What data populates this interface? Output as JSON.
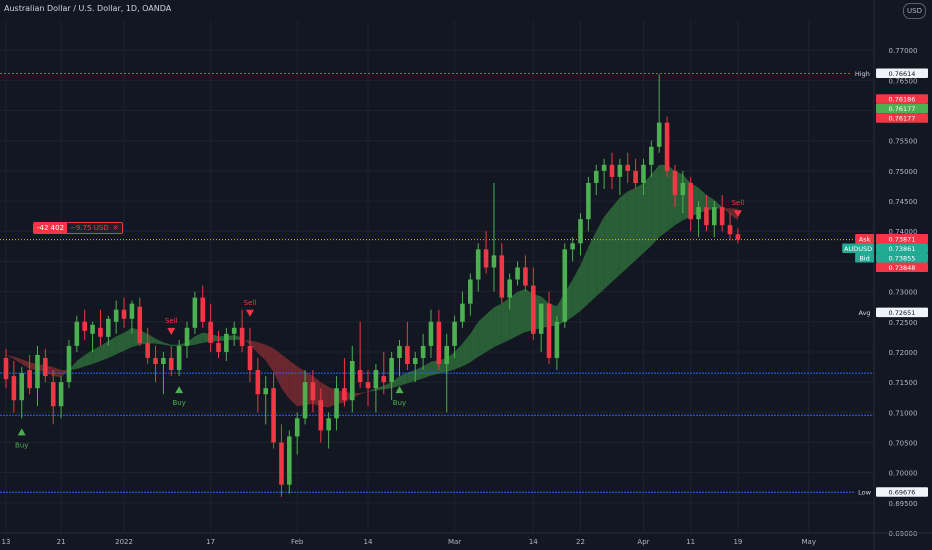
{
  "header": {
    "title": "Australian Dollar / U.S. Dollar, 1D, OANDA",
    "currency": "USD"
  },
  "position": {
    "quantity": "-42 402",
    "pnl": "−9.75 USD",
    "close_symbol": "✕"
  },
  "colors": {
    "background": "#131722",
    "up_candle": "#4caf50",
    "down_candle": "#f23645",
    "cloud_up": "#2e6b3a",
    "cloud_down": "#7a2a30",
    "high_line": "#f23645",
    "current_price_line": "#f0b90b",
    "level_line": "#2962ff"
  },
  "chart_data": {
    "type": "candlestick",
    "title": "Australian Dollar / U.S. Dollar, 1D, OANDA",
    "ylim": [
      0.69,
      0.775
    ],
    "y_ticks": [
      "0.77000",
      "0.76500",
      "0.76000",
      "0.75500",
      "0.75000",
      "0.74500",
      "0.74000",
      "0.73500",
      "0.73000",
      "0.72500",
      "0.72000",
      "0.71500",
      "0.71000",
      "0.70500",
      "0.70000",
      "0.69500",
      "0.69000"
    ],
    "x_ticks": [
      "13",
      "21",
      "2022",
      "17",
      "Feb",
      "14",
      "Mar",
      "14",
      "22",
      "Apr",
      "11",
      "19",
      "May"
    ],
    "x_tick_index": [
      0,
      7,
      15,
      26,
      37,
      46,
      57,
      67,
      73,
      81,
      87,
      93,
      102
    ],
    "candles": [
      [
        0.719,
        0.7205,
        0.714,
        0.7155
      ],
      [
        0.716,
        0.7185,
        0.71,
        0.712
      ],
      [
        0.712,
        0.7175,
        0.709,
        0.7165
      ],
      [
        0.717,
        0.7195,
        0.713,
        0.714
      ],
      [
        0.714,
        0.721,
        0.711,
        0.7195
      ],
      [
        0.719,
        0.7205,
        0.715,
        0.716
      ],
      [
        0.715,
        0.717,
        0.708,
        0.711
      ],
      [
        0.711,
        0.716,
        0.709,
        0.715
      ],
      [
        0.715,
        0.722,
        0.714,
        0.721
      ],
      [
        0.721,
        0.726,
        0.72,
        0.725
      ],
      [
        0.725,
        0.727,
        0.722,
        0.7235
      ],
      [
        0.723,
        0.725,
        0.72,
        0.7245
      ],
      [
        0.724,
        0.727,
        0.721,
        0.7225
      ],
      [
        0.7225,
        0.726,
        0.721,
        0.7255
      ],
      [
        0.725,
        0.7285,
        0.723,
        0.727
      ],
      [
        0.727,
        0.729,
        0.724,
        0.7255
      ],
      [
        0.7255,
        0.7285,
        0.723,
        0.728
      ],
      [
        0.7275,
        0.729,
        0.721,
        0.7215
      ],
      [
        0.7215,
        0.724,
        0.718,
        0.719
      ],
      [
        0.719,
        0.721,
        0.715,
        0.718
      ],
      [
        0.718,
        0.72,
        0.713,
        0.719
      ],
      [
        0.719,
        0.721,
        0.716,
        0.717
      ],
      [
        0.717,
        0.722,
        0.716,
        0.721
      ],
      [
        0.721,
        0.725,
        0.719,
        0.724
      ],
      [
        0.724,
        0.73,
        0.723,
        0.729
      ],
      [
        0.729,
        0.731,
        0.724,
        0.725
      ],
      [
        0.725,
        0.728,
        0.72,
        0.7215
      ],
      [
        0.7215,
        0.7235,
        0.719,
        0.72
      ],
      [
        0.72,
        0.724,
        0.7185,
        0.723
      ],
      [
        0.723,
        0.725,
        0.721,
        0.724
      ],
      [
        0.724,
        0.727,
        0.72,
        0.721
      ],
      [
        0.721,
        0.724,
        0.715,
        0.717
      ],
      [
        0.717,
        0.719,
        0.71,
        0.713
      ],
      [
        0.713,
        0.716,
        0.708,
        0.714
      ],
      [
        0.714,
        0.7165,
        0.704,
        0.705
      ],
      [
        0.705,
        0.708,
        0.696,
        0.698
      ],
      [
        0.698,
        0.707,
        0.6965,
        0.706
      ],
      [
        0.706,
        0.71,
        0.703,
        0.709
      ],
      [
        0.709,
        0.717,
        0.708,
        0.715
      ],
      [
        0.715,
        0.717,
        0.71,
        0.712
      ],
      [
        0.712,
        0.714,
        0.705,
        0.707
      ],
      [
        0.707,
        0.71,
        0.704,
        0.709
      ],
      [
        0.709,
        0.716,
        0.707,
        0.714
      ],
      [
        0.714,
        0.719,
        0.711,
        0.712
      ],
      [
        0.712,
        0.721,
        0.71,
        0.7185
      ],
      [
        0.717,
        0.725,
        0.714,
        0.715
      ],
      [
        0.715,
        0.717,
        0.711,
        0.714
      ],
      [
        0.714,
        0.718,
        0.71,
        0.717
      ],
      [
        0.716,
        0.72,
        0.713,
        0.715
      ],
      [
        0.715,
        0.72,
        0.712,
        0.719
      ],
      [
        0.719,
        0.722,
        0.716,
        0.721
      ],
      [
        0.721,
        0.725,
        0.717,
        0.718
      ],
      [
        0.718,
        0.72,
        0.715,
        0.719
      ],
      [
        0.719,
        0.723,
        0.717,
        0.721
      ],
      [
        0.721,
        0.727,
        0.719,
        0.725
      ],
      [
        0.725,
        0.727,
        0.717,
        0.718
      ],
      [
        0.718,
        0.723,
        0.71,
        0.721
      ],
      [
        0.721,
        0.726,
        0.719,
        0.725
      ],
      [
        0.725,
        0.73,
        0.724,
        0.728
      ],
      [
        0.728,
        0.733,
        0.726,
        0.732
      ],
      [
        0.732,
        0.738,
        0.73,
        0.737
      ],
      [
        0.737,
        0.74,
        0.733,
        0.734
      ],
      [
        0.734,
        0.748,
        0.73,
        0.736
      ],
      [
        0.736,
        0.738,
        0.728,
        0.729
      ],
      [
        0.729,
        0.733,
        0.727,
        0.732
      ],
      [
        0.732,
        0.735,
        0.731,
        0.734
      ],
      [
        0.734,
        0.736,
        0.73,
        0.731
      ],
      [
        0.731,
        0.734,
        0.722,
        0.723
      ],
      [
        0.723,
        0.728,
        0.72,
        0.728
      ],
      [
        0.728,
        0.73,
        0.718,
        0.719
      ],
      [
        0.719,
        0.726,
        0.717,
        0.725
      ],
      [
        0.725,
        0.738,
        0.724,
        0.737
      ],
      [
        0.737,
        0.739,
        0.735,
        0.738
      ],
      [
        0.738,
        0.743,
        0.736,
        0.742
      ],
      [
        0.742,
        0.749,
        0.74,
        0.748
      ],
      [
        0.748,
        0.751,
        0.746,
        0.75
      ],
      [
        0.75,
        0.752,
        0.747,
        0.751
      ],
      [
        0.751,
        0.753,
        0.747,
        0.749
      ],
      [
        0.749,
        0.752,
        0.746,
        0.751
      ],
      [
        0.751,
        0.753,
        0.748,
        0.75
      ],
      [
        0.75,
        0.752,
        0.747,
        0.748
      ],
      [
        0.748,
        0.752,
        0.746,
        0.751
      ],
      [
        0.751,
        0.755,
        0.749,
        0.754
      ],
      [
        0.754,
        0.766,
        0.753,
        0.758
      ],
      [
        0.758,
        0.759,
        0.749,
        0.75
      ],
      [
        0.75,
        0.751,
        0.744,
        0.746
      ],
      [
        0.746,
        0.75,
        0.743,
        0.748
      ],
      [
        0.748,
        0.749,
        0.74,
        0.742
      ],
      [
        0.742,
        0.745,
        0.739,
        0.744
      ],
      [
        0.744,
        0.746,
        0.74,
        0.741
      ],
      [
        0.741,
        0.745,
        0.739,
        0.744
      ],
      [
        0.744,
        0.746,
        0.74,
        0.741
      ],
      [
        0.741,
        0.743,
        0.7385,
        0.7395
      ],
      [
        0.7395,
        0.7405,
        0.738,
        0.7386
      ]
    ],
    "cloud": [
      [
        0.7195,
        0.7195
      ],
      [
        0.7188,
        0.7192
      ],
      [
        0.718,
        0.7188
      ],
      [
        0.7172,
        0.7183
      ],
      [
        0.717,
        0.718
      ],
      [
        0.7166,
        0.7178
      ],
      [
        0.716,
        0.7175
      ],
      [
        0.7158,
        0.717
      ],
      [
        0.717,
        0.717
      ],
      [
        0.7185,
        0.7172
      ],
      [
        0.7195,
        0.7176
      ],
      [
        0.7203,
        0.718
      ],
      [
        0.721,
        0.7185
      ],
      [
        0.7218,
        0.719
      ],
      [
        0.7226,
        0.7196
      ],
      [
        0.7232,
        0.7202
      ],
      [
        0.724,
        0.7208
      ],
      [
        0.7236,
        0.7212
      ],
      [
        0.723,
        0.7214
      ],
      [
        0.7222,
        0.7214
      ],
      [
        0.7216,
        0.7212
      ],
      [
        0.7212,
        0.721
      ],
      [
        0.7212,
        0.721
      ],
      [
        0.7216,
        0.721
      ],
      [
        0.7226,
        0.7212
      ],
      [
        0.7232,
        0.7215
      ],
      [
        0.723,
        0.7217
      ],
      [
        0.7226,
        0.7218
      ],
      [
        0.7226,
        0.7219
      ],
      [
        0.7228,
        0.722
      ],
      [
        0.7224,
        0.722
      ],
      [
        0.7212,
        0.7219
      ],
      [
        0.7198,
        0.7216
      ],
      [
        0.7186,
        0.7212
      ],
      [
        0.7166,
        0.7206
      ],
      [
        0.714,
        0.7196
      ],
      [
        0.7122,
        0.7186
      ],
      [
        0.711,
        0.7176
      ],
      [
        0.7112,
        0.7168
      ],
      [
        0.7114,
        0.716
      ],
      [
        0.711,
        0.715
      ],
      [
        0.7108,
        0.7142
      ],
      [
        0.7114,
        0.7137
      ],
      [
        0.7116,
        0.7134
      ],
      [
        0.7124,
        0.7132
      ],
      [
        0.713,
        0.7132
      ],
      [
        0.7134,
        0.7134
      ],
      [
        0.714,
        0.7136
      ],
      [
        0.7144,
        0.7138
      ],
      [
        0.715,
        0.714
      ],
      [
        0.716,
        0.7144
      ],
      [
        0.7166,
        0.7148
      ],
      [
        0.717,
        0.7152
      ],
      [
        0.7176,
        0.7156
      ],
      [
        0.7184,
        0.7161
      ],
      [
        0.7186,
        0.7164
      ],
      [
        0.719,
        0.7167
      ],
      [
        0.72,
        0.7171
      ],
      [
        0.7214,
        0.7176
      ],
      [
        0.723,
        0.7183
      ],
      [
        0.725,
        0.7192
      ],
      [
        0.7262,
        0.72
      ],
      [
        0.7274,
        0.7208
      ],
      [
        0.728,
        0.7214
      ],
      [
        0.729,
        0.722
      ],
      [
        0.73,
        0.7227
      ],
      [
        0.7304,
        0.7233
      ],
      [
        0.7296,
        0.7236
      ],
      [
        0.7292,
        0.724
      ],
      [
        0.728,
        0.7242
      ],
      [
        0.7276,
        0.7244
      ],
      [
        0.7298,
        0.725
      ],
      [
        0.732,
        0.7258
      ],
      [
        0.7344,
        0.7268
      ],
      [
        0.7374,
        0.728
      ],
      [
        0.74,
        0.7292
      ],
      [
        0.7424,
        0.7304
      ],
      [
        0.744,
        0.7316
      ],
      [
        0.7456,
        0.7328
      ],
      [
        0.7466,
        0.734
      ],
      [
        0.7472,
        0.7352
      ],
      [
        0.748,
        0.7364
      ],
      [
        0.7494,
        0.7376
      ],
      [
        0.751,
        0.739
      ],
      [
        0.751,
        0.74
      ],
      [
        0.75,
        0.741
      ],
      [
        0.7494,
        0.7418
      ],
      [
        0.748,
        0.7424
      ],
      [
        0.7472,
        0.743
      ],
      [
        0.746,
        0.7434
      ],
      [
        0.7452,
        0.7437
      ],
      [
        0.744,
        0.7438
      ],
      [
        0.7428,
        0.7438
      ],
      [
        0.7418,
        0.7437
      ]
    ],
    "signals": [
      {
        "label": "Buy",
        "type": "buy",
        "index": 2
      },
      {
        "label": "Sell",
        "type": "sell",
        "index": 21
      },
      {
        "label": "Buy",
        "type": "buy",
        "index": 22
      },
      {
        "label": "Sell",
        "type": "sell",
        "index": 31
      },
      {
        "label": "Buy",
        "type": "buy",
        "index": 50
      },
      {
        "label": "Sell",
        "type": "sell",
        "index": 93
      }
    ],
    "horizontal_levels": [
      0.76614,
      0.7165,
      0.7095,
      0.69676
    ],
    "current_price": 0.73861,
    "price_labels": [
      {
        "text": "0.76614",
        "tag": "High",
        "color": "#131722",
        "tag_bg": "#131722",
        "bg": "#f0f3fa",
        "fg": "#131722",
        "value": 0.76614,
        "tag_fg": "#d1d4dc"
      },
      {
        "text": "0.76177",
        "value": 0.76177,
        "bg": "#4caf50",
        "fg": "#ffffff"
      },
      {
        "text": "0.76186",
        "value": 0.76186,
        "bg": "#f23645",
        "fg": "#ffffff"
      },
      {
        "text": "0.76177",
        "value": 0.76177,
        "bg": "#f23645",
        "fg": "#ffffff"
      },
      {
        "text": "0.73871",
        "tag": "Ask",
        "value": 0.73871,
        "bg": "#f23645",
        "fg": "#ffffff",
        "tag_bg": "#f23645",
        "tag_fg": "#ffffff"
      },
      {
        "text": "0.73861",
        "tag": "AUDUSD",
        "value": 0.73861,
        "bg": "#22ab94",
        "fg": "#ffffff",
        "tag_bg": "#22ab94",
        "tag_fg": "#ffffff"
      },
      {
        "text": "0.73855",
        "tag": "Bid",
        "value": 0.73855,
        "bg": "#22ab94",
        "fg": "#ffffff",
        "tag_bg": "#22ab94",
        "tag_fg": "#ffffff"
      },
      {
        "text": "0.73848",
        "value": 0.73848,
        "bg": "#f23645",
        "fg": "#ffffff"
      },
      {
        "text": "0.72651",
        "tag": "Avg",
        "value": 0.72651,
        "bg": "#f0f3fa",
        "fg": "#131722",
        "tag_bg": "#131722",
        "tag_fg": "#d1d4dc"
      },
      {
        "text": "0.69676",
        "tag": "Low",
        "value": 0.69676,
        "bg": "#f0f3fa",
        "fg": "#131722",
        "tag_bg": "#131722",
        "tag_fg": "#d1d4dc"
      }
    ],
    "grid": true
  }
}
